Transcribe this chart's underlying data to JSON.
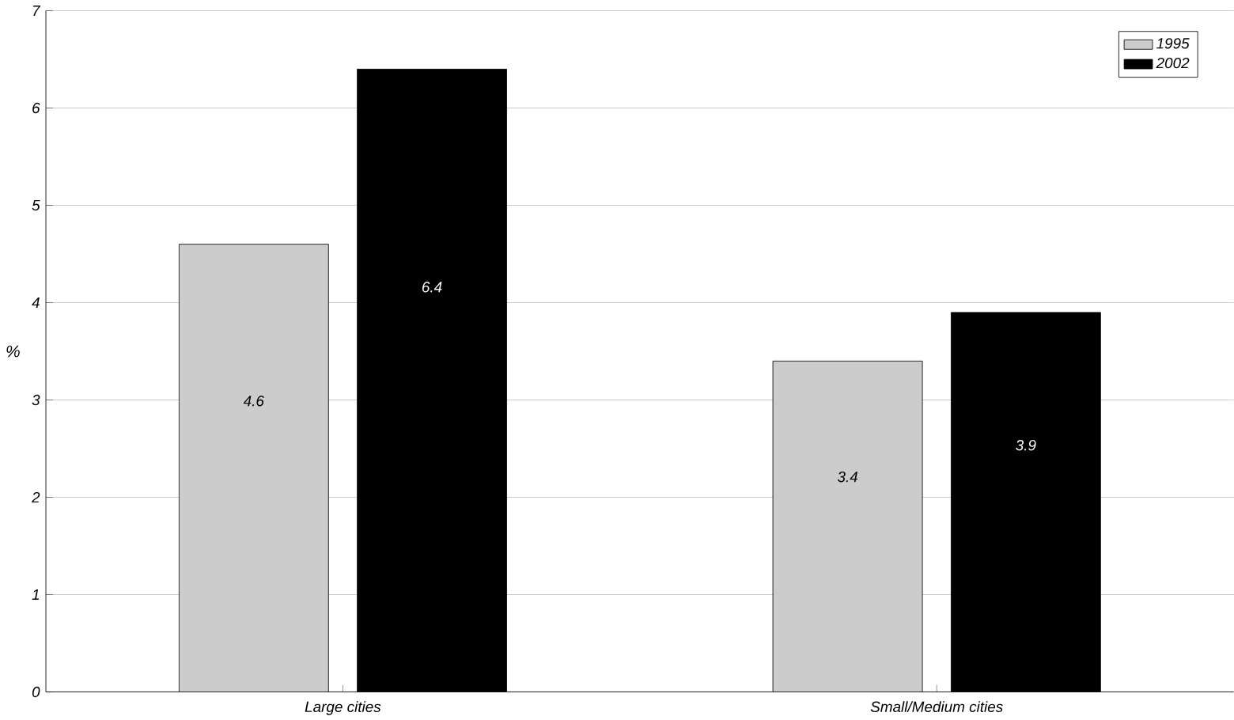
{
  "chart_data": {
    "type": "bar",
    "categories": [
      "Large cities",
      "Small/Medium cities"
    ],
    "ylabel": "%",
    "series": [
      {
        "name": "1995",
        "color": "#cccccc",
        "values": [
          4.6,
          3.4
        ]
      },
      {
        "name": "2002",
        "color": "#000000",
        "values": [
          6.4,
          3.9
        ]
      }
    ],
    "ylim": [
      0,
      7
    ],
    "yticks": [
      0,
      1,
      2,
      3,
      4,
      5,
      6,
      7
    ],
    "grid": "y",
    "legend": "top right",
    "data_labels": true
  }
}
